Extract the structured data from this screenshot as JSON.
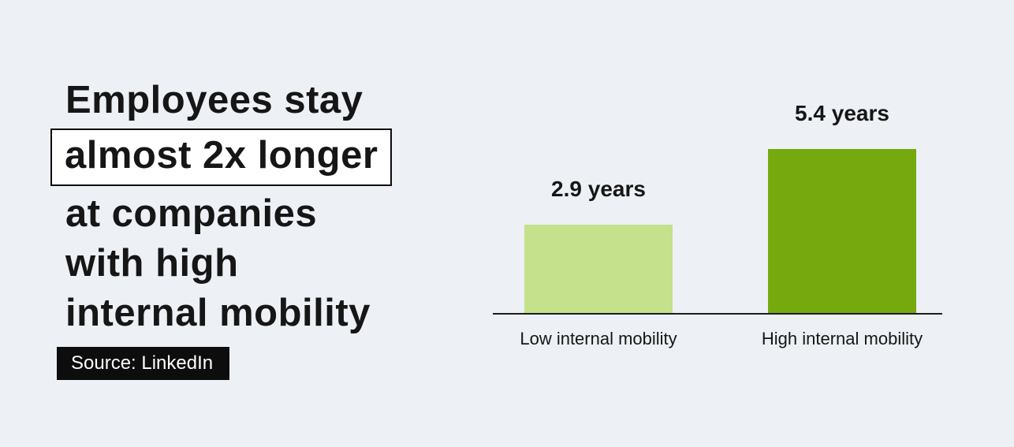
{
  "page": {
    "background": "#edf0f5"
  },
  "headline": {
    "line1": "Employees stay",
    "highlight": "almost 2x longer",
    "line2": "at companies",
    "line3": "with high",
    "line4": "internal mobility"
  },
  "source": {
    "label": "Source: LinkedIn"
  },
  "chart_data": {
    "type": "bar",
    "title": "",
    "xlabel": "",
    "ylabel": "",
    "categories": [
      "Low internal mobility",
      "High internal mobility"
    ],
    "values": [
      2.9,
      5.4
    ],
    "value_labels": [
      "2.9 years",
      "5.4 years"
    ],
    "unit": "years",
    "bar_colors": [
      "#c6e18c",
      "#76a90e"
    ],
    "ylim": [
      0,
      5.4
    ],
    "grid": false,
    "legend": false,
    "axis_line_color": "#1c1c1c"
  }
}
